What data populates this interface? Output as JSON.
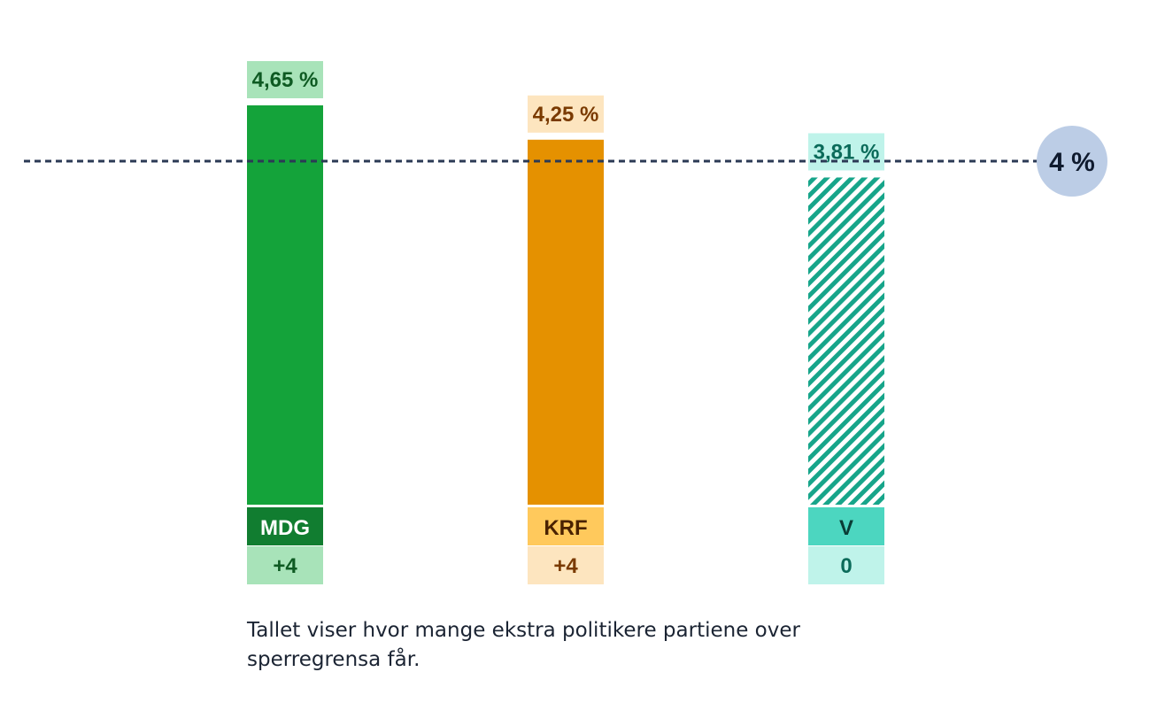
{
  "chart_data": {
    "type": "bar",
    "categories": [
      "MDG",
      "KRF",
      "V"
    ],
    "values": [
      4.65,
      4.25,
      3.81
    ],
    "value_labels": [
      "4,65 %",
      "4,25 %",
      "3,81 %"
    ],
    "seat_changes": [
      "+4",
      "+4",
      "0"
    ],
    "threshold": {
      "value": 4,
      "label": "4 %"
    },
    "ylim": [
      0,
      4.65
    ],
    "grid": false,
    "colors": {
      "MDG": {
        "bar": "#14a33a",
        "label_bg": "#a8e3b9",
        "label_text": "#0e5a22",
        "name_bg": "#117d30",
        "name_text": "#ffffff"
      },
      "KRF": {
        "bar": "#e59100",
        "label_bg": "#fde5bf",
        "label_text": "#7a3a00",
        "name_bg": "#ffc95c",
        "name_text": "#4a2200"
      },
      "V": {
        "bar": "#17a58a",
        "label_bg": "#bff3ea",
        "label_text": "#0b6b5a",
        "name_bg": "#4cd6c0",
        "name_text": "#0a3d36",
        "hatched": true
      }
    },
    "threshold_color": "#2b3a55",
    "threshold_badge_bg": "#bccde6"
  },
  "footnote": "Tallet viser hvor mange ekstra politikere partiene over sperregrensa får."
}
